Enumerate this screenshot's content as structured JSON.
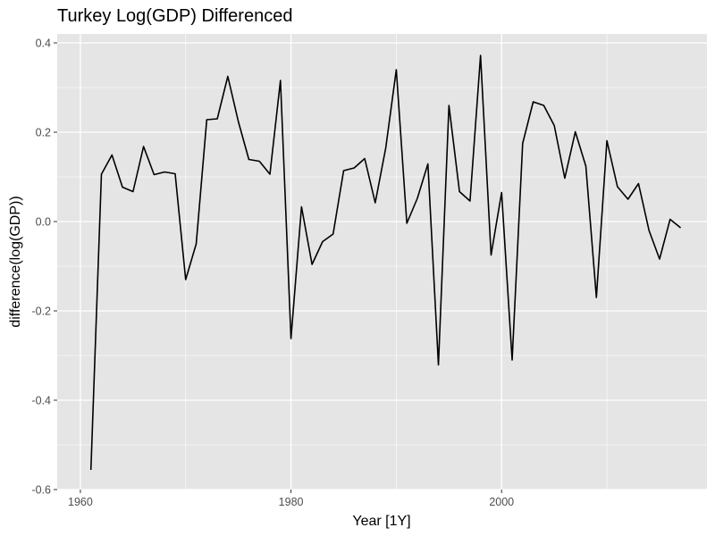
{
  "chart_data": {
    "type": "line",
    "title": "Turkey Log(GDP) Differenced",
    "xlabel": "Year [1Y]",
    "ylabel": "difference(log(GDP))",
    "xlim": [
      1957.8,
      2019.5
    ],
    "ylim": [
      -0.6,
      0.42
    ],
    "x_ticks": [
      1960,
      1980,
      2000
    ],
    "x_tick_labels": [
      "1960",
      "1980",
      "2000"
    ],
    "y_ticks": [
      -0.6,
      -0.4,
      -0.2,
      0.0,
      0.2,
      0.4
    ],
    "y_tick_labels": [
      "-0.6",
      "-0.4",
      "-0.2",
      "0.0",
      "0.2",
      "0.4"
    ],
    "grid": true,
    "legend": "none",
    "colors": {
      "panel": "#e5e5e5",
      "grid": "#ffffff",
      "line": "#000000",
      "tick": "#4d4d4d"
    },
    "series": [
      {
        "x": [
          1961,
          1962,
          1963,
          1964,
          1965,
          1966,
          1967,
          1968,
          1969,
          1970,
          1971,
          1972,
          1973,
          1974,
          1975,
          1976,
          1977,
          1978,
          1979,
          1980,
          1981,
          1982,
          1983,
          1984,
          1985,
          1986,
          1987,
          1988,
          1989,
          1990,
          1991,
          1992,
          1993,
          1994,
          1995,
          1996,
          1997,
          1998,
          1999,
          2000,
          2001,
          2002,
          2003,
          2004,
          2005,
          2006,
          2007,
          2008,
          2009,
          2010,
          2011,
          2012,
          2013,
          2014,
          2015,
          2016,
          2017
        ],
        "values": [
          -0.556,
          0.106,
          0.149,
          0.077,
          0.067,
          0.168,
          0.105,
          0.111,
          0.107,
          -0.13,
          -0.05,
          0.228,
          0.23,
          0.325,
          0.224,
          0.139,
          0.135,
          0.106,
          0.316,
          -0.262,
          0.033,
          -0.096,
          -0.045,
          -0.028,
          0.114,
          0.12,
          0.141,
          0.042,
          0.165,
          0.34,
          -0.004,
          0.052,
          0.129,
          -0.321,
          0.26,
          0.067,
          0.046,
          0.372,
          -0.075,
          0.065,
          -0.31,
          0.175,
          0.268,
          0.26,
          0.215,
          0.097,
          0.201,
          0.124,
          -0.17,
          0.181,
          0.078,
          0.05,
          0.085,
          -0.02,
          -0.084,
          0.005,
          -0.014
        ]
      }
    ]
  }
}
